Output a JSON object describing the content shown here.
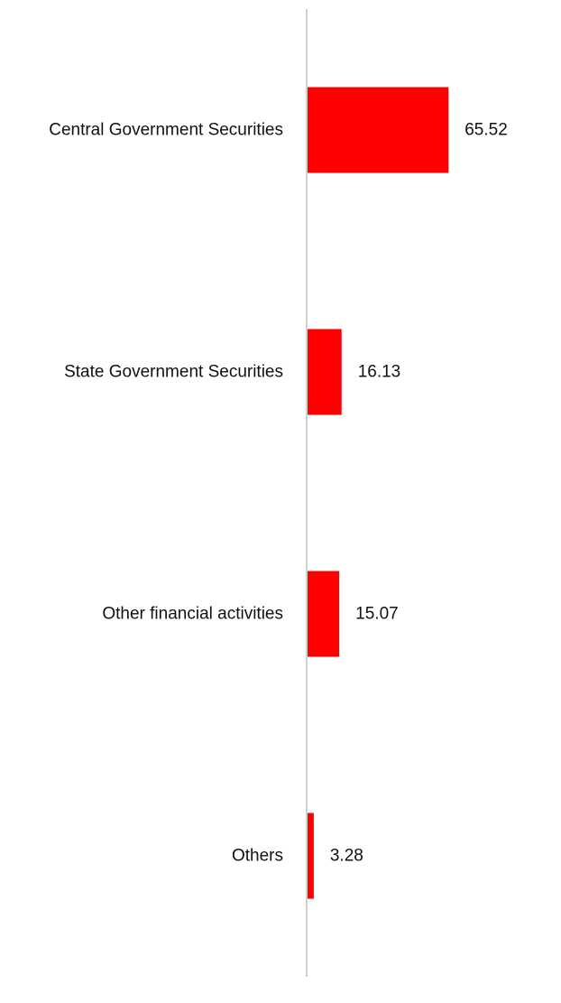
{
  "chart_data": {
    "type": "bar",
    "orientation": "horizontal",
    "categories": [
      "Central Government Securities",
      "State Government Securities",
      "Other financial activities",
      "Others"
    ],
    "values": [
      65.52,
      16.13,
      15.07,
      3.28
    ],
    "value_labels": [
      "65.52",
      "16.13",
      "15.07",
      "3.28"
    ],
    "bar_color": "#ff0000",
    "axis_color": "#d0d0d0",
    "xlim": [
      0,
      100
    ],
    "grid": false,
    "legend": "none",
    "title": "",
    "xlabel": "",
    "ylabel": ""
  }
}
